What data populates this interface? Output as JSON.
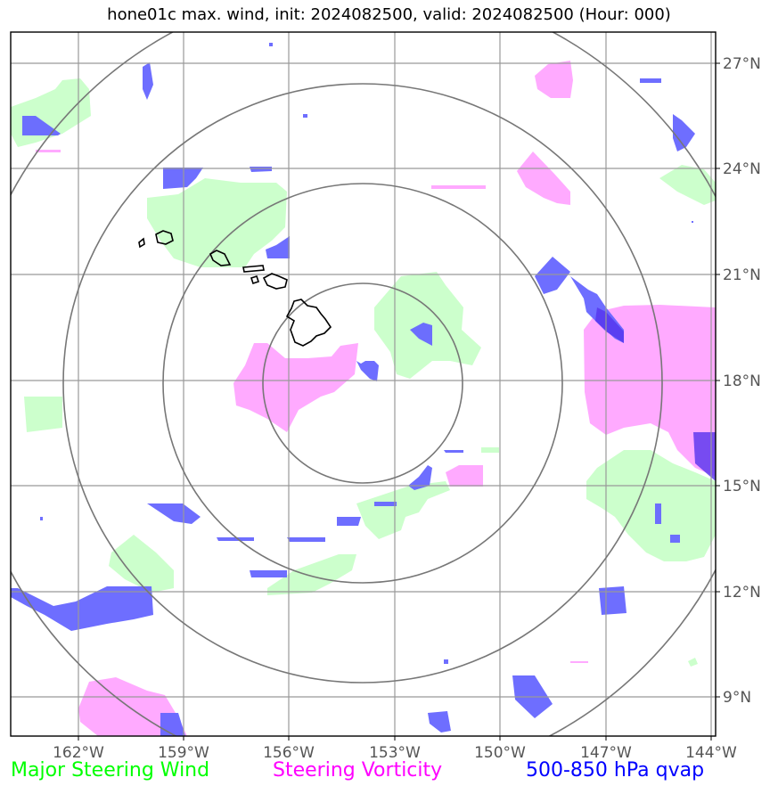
{
  "title": "hone01c max. wind, init: 2024082500, valid: 2024082500 (Hour: 000)",
  "lon_labels": [
    "162°W",
    "159°W",
    "156°W",
    "153°W",
    "150°W",
    "147°W",
    "144°W"
  ],
  "lat_labels": [
    "27°N",
    "24°N",
    "21°N",
    "18°N",
    "15°N",
    "12°N",
    "9°N"
  ],
  "legend": {
    "wind": {
      "label": "Major Steering Wind",
      "color": "#00ff00"
    },
    "vorticity": {
      "label": "Steering Vorticity",
      "color": "#ff00ff"
    },
    "qvap": {
      "label": "500-850 hPa qvap",
      "color": "#0000ff"
    }
  },
  "colors": {
    "wind_fill": "#ccffcc",
    "vort_fill": "#ffaaff",
    "qvap_fill": "#6666ff",
    "qvap_strong": "#5533ee",
    "grid": "#999999",
    "rings": "#777777",
    "coast": "#000000"
  },
  "map": {
    "lon_range": [
      "164°W",
      "144°W"
    ],
    "lat_range": [
      "8°N",
      "28°N"
    ],
    "range_rings": 4,
    "features": [
      "Hawaiian Islands",
      "tropical cyclone hone01c"
    ]
  }
}
